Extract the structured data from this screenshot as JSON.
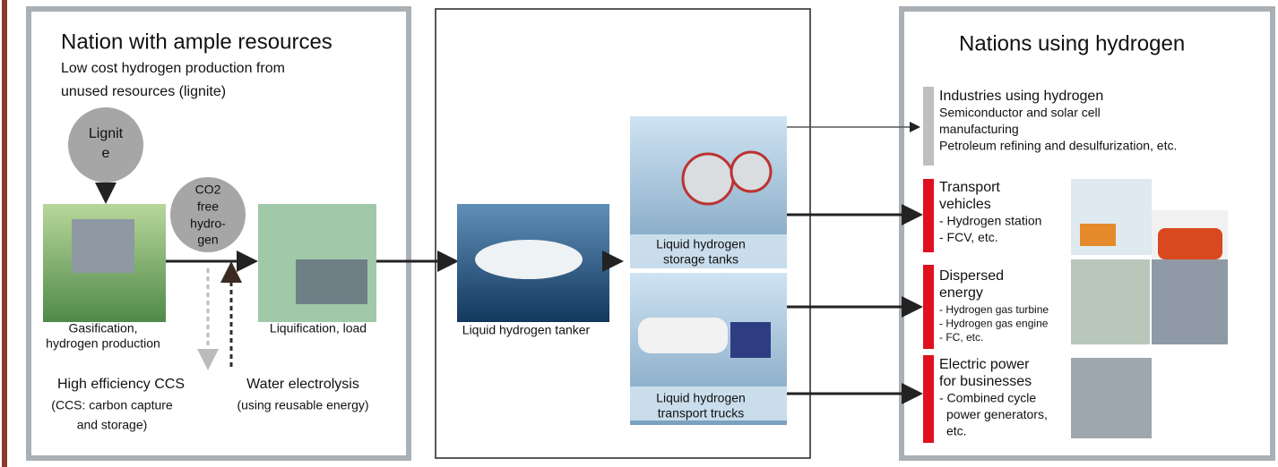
{
  "left": {
    "title": "Nation with ample resources",
    "subtitle": [
      "Low cost hydrogen production from",
      "unused resources (lignite)"
    ],
    "lignite": [
      "Lignit",
      "e"
    ],
    "co2_free": [
      "CO2",
      "free",
      "hydro-",
      "gen"
    ],
    "gasification": [
      "Gasification,",
      "hydrogen production"
    ],
    "liquification": "Liquification, load",
    "ccs": {
      "title": "High efficiency CCS",
      "note": [
        "(CCS: carbon capture",
        "and storage)"
      ]
    },
    "electrolysis": {
      "title": "Water electrolysis",
      "note": "(using reusable energy)"
    }
  },
  "middle": {
    "tanker": "Liquid hydrogen tanker",
    "storage": [
      "Liquid hydrogen",
      "storage tanks"
    ],
    "trucks": [
      "Liquid hydrogen",
      "transport trucks"
    ]
  },
  "right": {
    "title": "Nations using hydrogen",
    "groups": [
      {
        "title": [
          "Industries using hydrogen"
        ],
        "items": [
          "Semiconductor and solar cell",
          "manufacturing",
          "Petroleum refining and desulfurization, etc."
        ]
      },
      {
        "title": [
          "Transport",
          "vehicles"
        ],
        "items": [
          "- Hydrogen station",
          "- FCV, etc."
        ]
      },
      {
        "title": [
          "Dispersed",
          "energy"
        ],
        "items": [
          "- Hydrogen gas turbine",
          "- Hydrogen gas engine",
          "- FC, etc."
        ]
      },
      {
        "title": [
          "Electric power",
          "for businesses"
        ],
        "items": [
          "- Combined cycle",
          "power generators,",
          "etc."
        ]
      }
    ]
  }
}
